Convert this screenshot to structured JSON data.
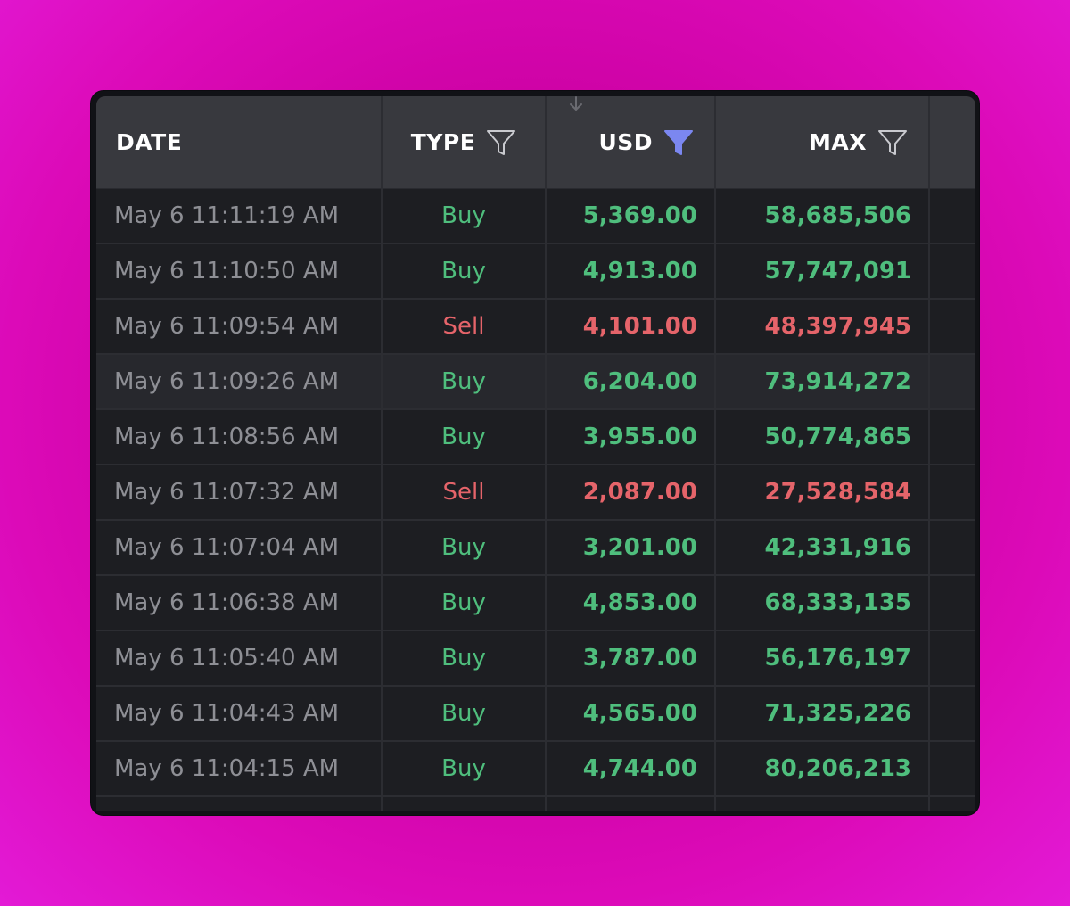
{
  "colors": {
    "buy": "#4fbe7d",
    "sell": "#e5646a",
    "active_filter": "#7b87f0",
    "header_bg": "#38393e",
    "row_bg": "#1d1e22"
  },
  "columns": {
    "date": {
      "label": "DATE"
    },
    "type": {
      "label": "TYPE",
      "icon": "filter-icon",
      "filter_active": false
    },
    "usd": {
      "label": "USD",
      "icon": "filter-icon",
      "filter_active": true,
      "sort_indicator": "arrow-down-icon"
    },
    "max": {
      "label": "MAX",
      "icon": "filter-icon",
      "filter_active": false
    }
  },
  "rows": [
    {
      "date": "May 6 11:11:19 AM",
      "type": "Buy",
      "usd": "5,369.00",
      "max": "58,685,506"
    },
    {
      "date": "May 6 11:10:50 AM",
      "type": "Buy",
      "usd": "4,913.00",
      "max": "57,747,091"
    },
    {
      "date": "May 6 11:09:54 AM",
      "type": "Sell",
      "usd": "4,101.00",
      "max": "48,397,945"
    },
    {
      "date": "May 6 11:09:26 AM",
      "type": "Buy",
      "usd": "6,204.00",
      "max": "73,914,272",
      "highlighted": true
    },
    {
      "date": "May 6 11:08:56 AM",
      "type": "Buy",
      "usd": "3,955.00",
      "max": "50,774,865"
    },
    {
      "date": "May 6 11:07:32 AM",
      "type": "Sell",
      "usd": "2,087.00",
      "max": "27,528,584"
    },
    {
      "date": "May 6 11:07:04 AM",
      "type": "Buy",
      "usd": "3,201.00",
      "max": "42,331,916"
    },
    {
      "date": "May 6 11:06:38 AM",
      "type": "Buy",
      "usd": "4,853.00",
      "max": "68,333,135"
    },
    {
      "date": "May 6 11:05:40 AM",
      "type": "Buy",
      "usd": "3,787.00",
      "max": "56,176,197"
    },
    {
      "date": "May 6 11:04:43 AM",
      "type": "Buy",
      "usd": "4,565.00",
      "max": "71,325,226"
    },
    {
      "date": "May 6 11:04:15 AM",
      "type": "Buy",
      "usd": "4,744.00",
      "max": "80,206,213"
    }
  ]
}
